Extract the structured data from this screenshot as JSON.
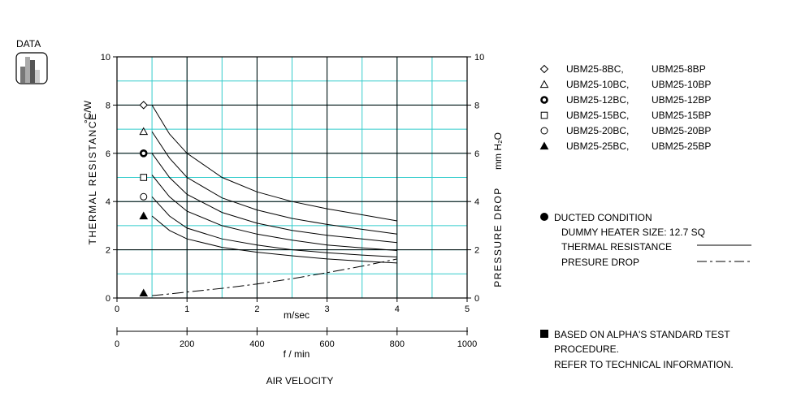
{
  "badge": {
    "label": "DATA",
    "icon": "bar-chart-icon"
  },
  "chart_data": {
    "type": "line",
    "y_left_label": "THERMAL RESISTANCE",
    "y_left_unit": "°C/W",
    "y_right_label": "PRESSURE DROP",
    "y_right_unit": "mm H₂O",
    "x_label_ms": "m/sec",
    "x_label_fmin": "f / min",
    "x_caption": "AIR VELOCITY",
    "xlim_ms": [
      0,
      5
    ],
    "ylim": [
      0,
      10
    ],
    "x_ticks_ms": [
      "0",
      "1",
      "2",
      "3",
      "4",
      "5"
    ],
    "x_ticks_fmin": [
      "0",
      "200",
      "400",
      "600",
      "800",
      "1000"
    ],
    "y_ticks_left": [
      "0",
      "2",
      "4",
      "6",
      "8",
      "10"
    ],
    "y_ticks_right": [
      "0",
      "2",
      "4",
      "6",
      "8",
      "10"
    ],
    "x": [
      0.5,
      0.75,
      1.0,
      1.5,
      2.0,
      2.5,
      3.0,
      3.5,
      4.0
    ],
    "series": [
      {
        "name": "UBM25-8BC,   UBM25-8BP",
        "marker": "diamond",
        "axis": "thermal",
        "values": [
          8.0,
          6.8,
          6.0,
          5.0,
          4.4,
          4.0,
          3.7,
          3.45,
          3.2
        ]
      },
      {
        "name": "UBM25-10BC,  UBM25-10BP",
        "marker": "triangle",
        "axis": "thermal",
        "values": [
          6.9,
          5.8,
          5.0,
          4.15,
          3.65,
          3.3,
          3.05,
          2.85,
          2.65
        ]
      },
      {
        "name": "UBM25-12BC,  UBM25-12BP",
        "marker": "bold-circle",
        "axis": "thermal",
        "values": [
          6.0,
          5.0,
          4.3,
          3.55,
          3.1,
          2.8,
          2.6,
          2.45,
          2.3
        ]
      },
      {
        "name": "UBM25-15BC,  UBM25-15BP",
        "marker": "square",
        "axis": "thermal",
        "values": [
          5.1,
          4.2,
          3.6,
          3.0,
          2.65,
          2.4,
          2.2,
          2.08,
          1.97
        ]
      },
      {
        "name": "UBM25-20BC,  UBM25-20BP",
        "marker": "circle",
        "axis": "thermal",
        "values": [
          4.2,
          3.4,
          2.9,
          2.45,
          2.2,
          2.0,
          1.88,
          1.78,
          1.7
        ]
      },
      {
        "name": "UBM25-25BC,  UBM25-25BP",
        "marker": "filled-triangle",
        "axis": "thermal",
        "values": [
          3.4,
          2.8,
          2.45,
          2.1,
          1.9,
          1.75,
          1.62,
          1.53,
          1.45
        ]
      },
      {
        "name": "PRESURE DROP",
        "marker": "none",
        "axis": "pressure",
        "style": "dash-dot",
        "values": [
          0.1,
          0.17,
          0.25,
          0.4,
          0.58,
          0.8,
          1.05,
          1.32,
          1.62
        ]
      }
    ],
    "marker_x": 0.38,
    "marker_y": [
      8.0,
      6.9,
      6.0,
      5.0,
      4.2,
      3.4,
      0.2
    ],
    "marker_types": [
      "diamond",
      "triangle",
      "bold-circle",
      "square",
      "circle",
      "filled-triangle",
      "filled-triangle"
    ],
    "grid": true,
    "grid_color": "#33cccc",
    "line_color": "#000000"
  },
  "notes": {
    "condition_title": "DUCTED CONDITION",
    "heater": "DUMMY HEATER SIZE: 12.7 SQ",
    "thermal_line_label": "THERMAL RESISTANCE",
    "pressure_line_label": "PRESURE DROP",
    "based_line1": "BASED ON ALPHA'S STANDARD TEST",
    "based_line2": "PROCEDURE.",
    "based_line3": "REFER TO TECHNICAL INFORMATION."
  }
}
